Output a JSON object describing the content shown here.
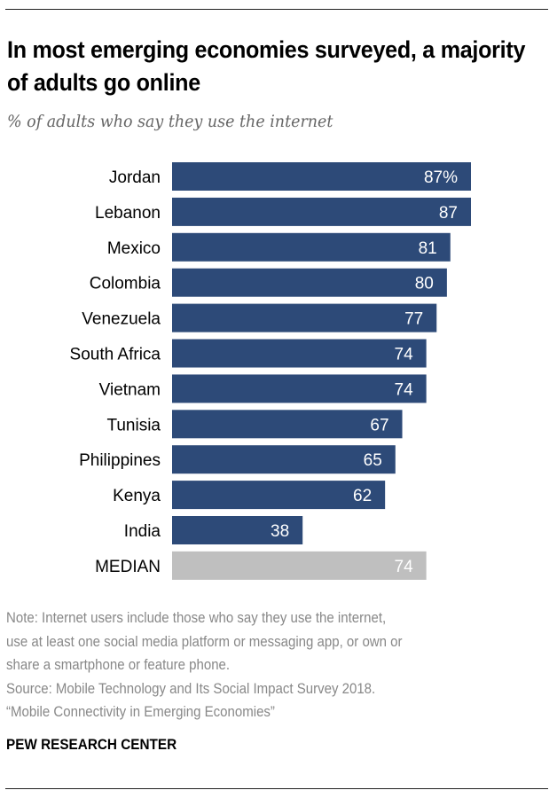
{
  "chart_data": {
    "type": "bar",
    "orientation": "horizontal",
    "title": "In most emerging economies surveyed, a majority of adults go online",
    "subtitle": "% of adults who say they use the internet",
    "categories": [
      "Jordan",
      "Lebanon",
      "Mexico",
      "Colombia",
      "Venezuela",
      "South Africa",
      "Vietnam",
      "Tunisia",
      "Philippines",
      "Kenya",
      "India",
      "MEDIAN"
    ],
    "values": [
      87,
      87,
      81,
      80,
      77,
      74,
      74,
      67,
      65,
      62,
      38,
      74
    ],
    "value_labels": [
      "87%",
      "87",
      "81",
      "80",
      "77",
      "74",
      "74",
      "67",
      "65",
      "62",
      "38",
      "74"
    ],
    "xlim": [
      0,
      100
    ],
    "grid": false,
    "colors": {
      "bar": "#2d4a78",
      "median": "#bfbfbf"
    }
  },
  "notes": [
    "Note: Internet users include those who say they use the internet,",
    "use at least one social media platform or messaging app, or own or",
    "share a smartphone or feature phone.",
    "Source: Mobile Technology and Its Social Impact Survey 2018.",
    "“Mobile Connectivity in Emerging Economies”"
  ],
  "brand": "PEW RESEARCH CENTER"
}
